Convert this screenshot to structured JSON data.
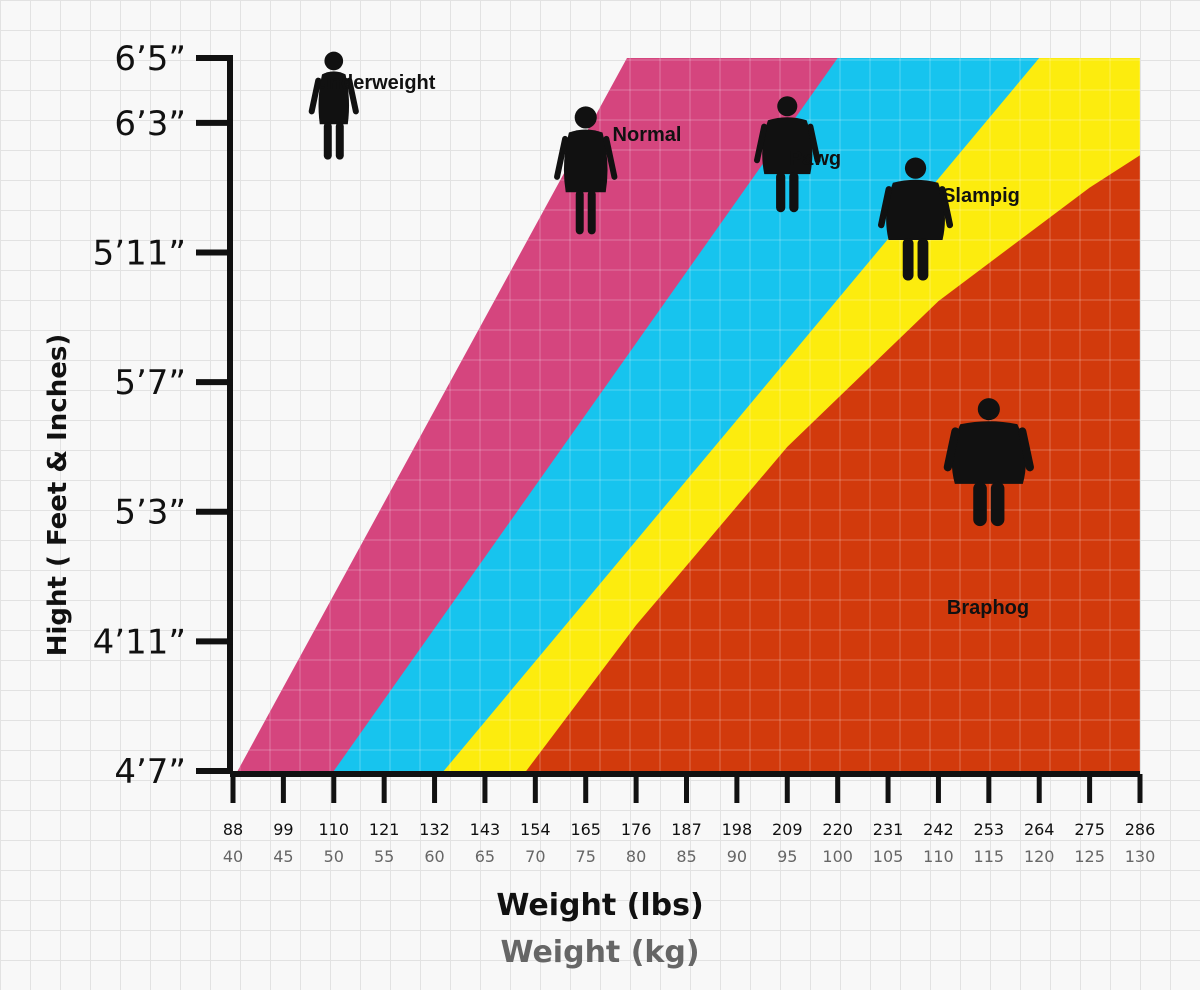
{
  "chart_data": {
    "type": "area",
    "title": "",
    "xlabel": "Weight (lbs)",
    "xlabel_secondary": "Weight (kg)",
    "ylabel": "Hight ( Feet & Inches)",
    "x_lbs_ticks": [
      "88",
      "99",
      "110",
      "121",
      "132",
      "143",
      "154",
      "165",
      "176",
      "187",
      "198",
      "209",
      "220",
      "231",
      "242",
      "253",
      "264",
      "275",
      "286"
    ],
    "x_kg_ticks": [
      "40",
      "45",
      "50",
      "55",
      "60",
      "65",
      "70",
      "75",
      "80",
      "85",
      "90",
      "95",
      "100",
      "105",
      "110",
      "115",
      "120",
      "125",
      "130"
    ],
    "y_ticks": [
      "4’7”",
      "4’11”",
      "5’3”",
      "5’7”",
      "5’11”",
      "6’3”",
      "6’5”"
    ],
    "y_tick_inches": [
      55,
      59,
      63,
      67,
      71,
      75,
      77
    ],
    "xlim_lbs": [
      88,
      286
    ],
    "ylim_inches": [
      55,
      77
    ],
    "zone_boundaries_lbs": [
      {
        "name": "Normal",
        "at_55in": 89,
        "at_77in": 174
      },
      {
        "name": "Pawg",
        "at_55in": 110,
        "at_77in": 220
      },
      {
        "name": "Slampig",
        "at_55in": 134,
        "at_77in": 264
      },
      {
        "name": "Braphog",
        "curve": [
          [
            152,
            55
          ],
          [
            176,
            59.5
          ],
          [
            209,
            65
          ],
          [
            242,
            69.5
          ],
          [
            275,
            73
          ],
          [
            286,
            74
          ]
        ]
      }
    ],
    "zones": [
      {
        "name": "underweight",
        "color": "#f8f8f8"
      },
      {
        "name": "Normal",
        "color": "#d5457e"
      },
      {
        "name": "Pawg",
        "color": "#17c4ee"
      },
      {
        "name": "Slampig",
        "color": "#fcec0e"
      },
      {
        "name": "Braphog",
        "color": "#d23a0c"
      }
    ],
    "zone_labels": [
      "underweight",
      "Normal",
      "Pawg",
      "Slampig",
      "Braphog"
    ],
    "figures": [
      {
        "zone": "underweight",
        "icon": "person-thin-icon",
        "lbs": 110,
        "in": 75.5
      },
      {
        "zone": "Normal",
        "icon": "person-normal-icon",
        "lbs": 165,
        "in": 73.5
      },
      {
        "zone": "Pawg",
        "icon": "person-pawg-icon",
        "lbs": 209,
        "in": 74
      },
      {
        "zone": "Slampig",
        "icon": "person-slampig-icon",
        "lbs": 237,
        "in": 72
      },
      {
        "zone": "Braphog",
        "icon": "person-braphog-icon",
        "lbs": 253,
        "in": 64.5
      }
    ],
    "grid": true
  }
}
